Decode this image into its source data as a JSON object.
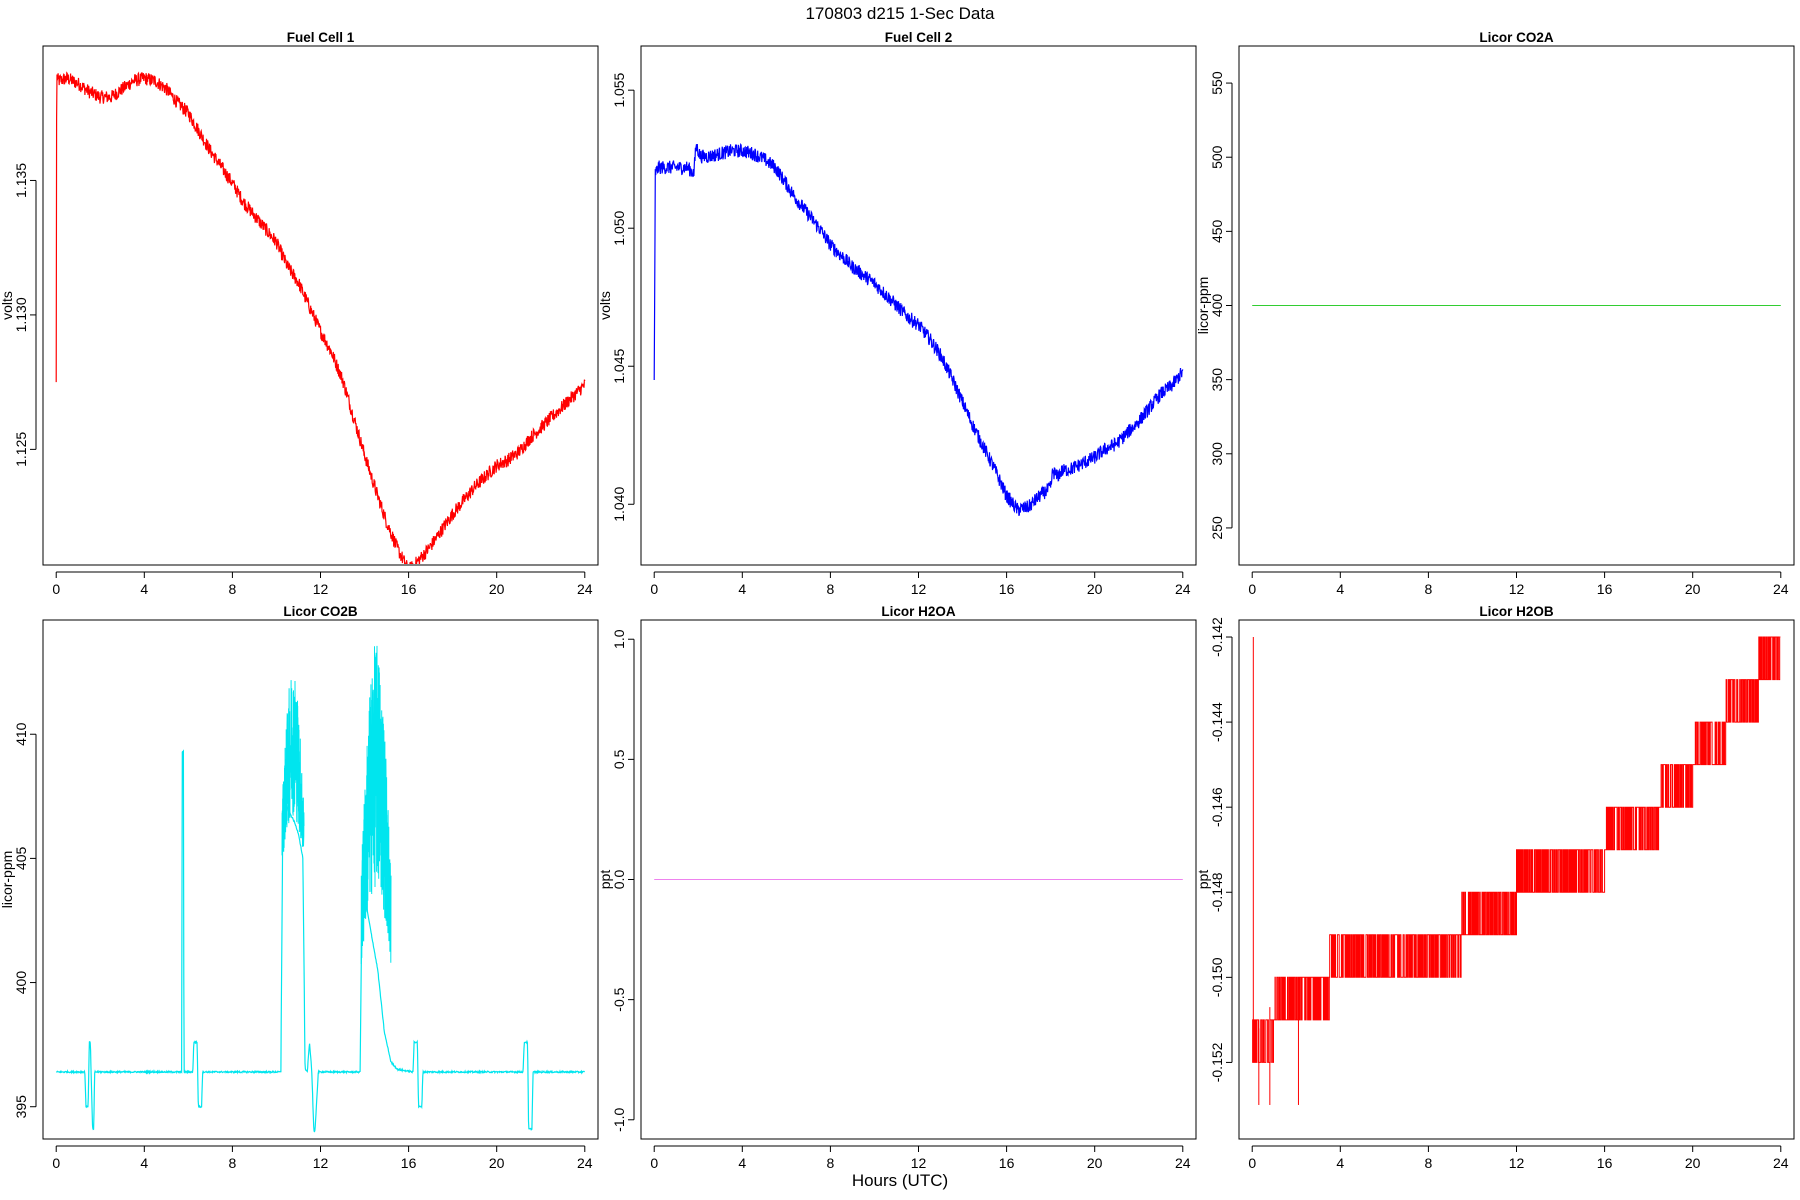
{
  "figure": {
    "title": "170803   d215   1-Sec Data",
    "xlabel": "Hours (UTC)"
  },
  "chart_data": [
    {
      "type": "line",
      "title": "Fuel Cell 1",
      "ylabel": "volts",
      "color": "#ff0000",
      "xlim": [
        -0.6,
        24.6
      ],
      "ylim": [
        1.1207,
        1.14
      ],
      "xticks": [
        0,
        4,
        8,
        12,
        16,
        20,
        24
      ],
      "yticks": [
        1.125,
        1.13,
        1.135
      ],
      "yticklabels": [
        "1.125",
        "1.130",
        "1.135"
      ],
      "noise": 0.00025,
      "x": [
        0,
        0.02,
        0.1,
        0.5,
        1,
        1.5,
        2,
        2.5,
        3,
        3.5,
        4,
        4.5,
        5,
        5.5,
        6,
        6.5,
        7,
        7.5,
        8,
        8.5,
        9,
        9.5,
        10,
        10.5,
        11,
        11.5,
        12,
        12.5,
        13,
        13.5,
        14,
        14.5,
        15,
        15.5,
        16,
        16.5,
        17,
        17.5,
        18,
        18.5,
        19,
        19.5,
        20,
        20.5,
        21,
        21.5,
        22,
        22.5,
        23,
        23.5,
        24
      ],
      "values": [
        1.1275,
        1.1389,
        1.1387,
        1.1388,
        1.1386,
        1.1383,
        1.1381,
        1.1381,
        1.1384,
        1.1387,
        1.1388,
        1.1387,
        1.1384,
        1.1379,
        1.1375,
        1.1368,
        1.1361,
        1.1355,
        1.1349,
        1.1342,
        1.1337,
        1.1332,
        1.1327,
        1.1318,
        1.1312,
        1.1303,
        1.1294,
        1.1286,
        1.1276,
        1.1262,
        1.1248,
        1.1235,
        1.1223,
        1.1213,
        1.1205,
        1.1209,
        1.1214,
        1.122,
        1.1226,
        1.1231,
        1.1236,
        1.124,
        1.1244,
        1.1246,
        1.1249,
        1.1254,
        1.1258,
        1.1262,
        1.1266,
        1.127,
        1.1274
      ]
    },
    {
      "type": "line",
      "title": "Fuel Cell 2",
      "ylabel": "volts",
      "color": "#0000ff",
      "xlim": [
        -0.6,
        24.6
      ],
      "ylim": [
        1.0378,
        1.0566
      ],
      "xticks": [
        0,
        4,
        8,
        12,
        16,
        20,
        24
      ],
      "yticks": [
        1.04,
        1.045,
        1.05,
        1.055
      ],
      "yticklabels": [
        "1.040",
        "1.045",
        "1.050",
        "1.055"
      ],
      "noise": 0.00025,
      "x": [
        0,
        0.05,
        0.2,
        0.5,
        1,
        1.5,
        1.8,
        1.9,
        2.1,
        2.5,
        3,
        3.5,
        4,
        4.5,
        5,
        5.5,
        6,
        6.5,
        7,
        7.5,
        8,
        8.5,
        9,
        9.5,
        10,
        10.5,
        11,
        11.5,
        12,
        12.5,
        13,
        13.5,
        14,
        14.5,
        15,
        15.5,
        16,
        16.5,
        17,
        17.5,
        18,
        18.1,
        18.3,
        18.5,
        19,
        19.5,
        20,
        20.5,
        21,
        21.5,
        22,
        22.5,
        23,
        23.5,
        24
      ],
      "values": [
        1.0445,
        1.052,
        1.0522,
        1.0522,
        1.0522,
        1.0522,
        1.052,
        1.053,
        1.0526,
        1.0526,
        1.0527,
        1.0528,
        1.0528,
        1.0527,
        1.0525,
        1.0522,
        1.0516,
        1.051,
        1.0505,
        1.05,
        1.0494,
        1.049,
        1.0486,
        1.0483,
        1.048,
        1.0476,
        1.0472,
        1.0468,
        1.0465,
        1.046,
        1.0454,
        1.0446,
        1.0437,
        1.0428,
        1.042,
        1.0412,
        1.0403,
        1.0398,
        1.0399,
        1.0403,
        1.0406,
        1.0412,
        1.041,
        1.0412,
        1.0413,
        1.0415,
        1.0417,
        1.042,
        1.0422,
        1.0426,
        1.043,
        1.0435,
        1.044,
        1.0443,
        1.0448
      ]
    },
    {
      "type": "line",
      "title": "Licor CO2A",
      "ylabel": "licor-ppm",
      "color": "#32cd32",
      "xlim": [
        -0.6,
        24.6
      ],
      "ylim": [
        225,
        575
      ],
      "xticks": [
        0,
        4,
        8,
        12,
        16,
        20,
        24
      ],
      "yticks": [
        250,
        300,
        350,
        400,
        450,
        500,
        550
      ],
      "yticklabels": [
        "250",
        "300",
        "350",
        "400",
        "450",
        "500",
        "550"
      ],
      "noise": 0,
      "x": [
        0,
        24
      ],
      "values": [
        400,
        400
      ]
    },
    {
      "type": "line",
      "title": "Licor CO2B",
      "ylabel": "licor-ppm",
      "color": "#00e5ee",
      "xlim": [
        -0.6,
        24.6
      ],
      "ylim": [
        393.7,
        414.6
      ],
      "xticks": [
        0,
        4,
        8,
        12,
        16,
        20,
        24
      ],
      "yticks": [
        395,
        400,
        405,
        410
      ],
      "yticklabels": [
        "395",
        "400",
        "405",
        "410"
      ],
      "noise": 0.03,
      "x": [
        0,
        1.3,
        1.35,
        1.45,
        1.5,
        1.55,
        1.65,
        1.7,
        1.75,
        2.0,
        5.7,
        5.72,
        5.78,
        5.8,
        6.2,
        6.25,
        6.4,
        6.45,
        6.6,
        6.65,
        10.2,
        10.3,
        10.5,
        10.8,
        11.0,
        11.2,
        11.3,
        11.4,
        11.5,
        11.6,
        11.7,
        11.75,
        11.9,
        11.95,
        13.8,
        13.9,
        14.0,
        14.3,
        14.6,
        14.9,
        15.2,
        15.5,
        16.2,
        16.25,
        16.4,
        16.45,
        16.6,
        16.65,
        21.2,
        21.25,
        21.4,
        21.45,
        21.6,
        21.65,
        24
      ],
      "values": [
        396.4,
        396.4,
        395.0,
        395.0,
        397.6,
        397.6,
        394.1,
        394.1,
        396.4,
        396.4,
        396.4,
        409.3,
        409.3,
        396.4,
        396.4,
        397.6,
        397.6,
        395.0,
        395.0,
        396.4,
        396.4,
        408.0,
        407.0,
        406.5,
        406.0,
        405.0,
        396.5,
        396.4,
        397.6,
        396.5,
        394.0,
        394.0,
        396.4,
        396.4,
        396.4,
        405.0,
        403.5,
        402.0,
        400.5,
        398.0,
        396.8,
        396.5,
        396.4,
        397.6,
        397.6,
        395.0,
        395.0,
        396.4,
        396.4,
        397.6,
        397.6,
        394.1,
        394.1,
        396.4,
        396.4
      ],
      "spikes": [
        {
          "from": 10.25,
          "to": 11.25,
          "min": 403.5,
          "max": 412.7
        },
        {
          "from": 13.85,
          "to": 15.2,
          "min": 398.5,
          "max": 413.7
        }
      ]
    },
    {
      "type": "line",
      "title": "Licor H2OA",
      "ylabel": "ppt",
      "color": "#ee82ee",
      "xlim": [
        -0.6,
        24.6
      ],
      "ylim": [
        -1.08,
        1.08
      ],
      "xticks": [
        0,
        4,
        8,
        12,
        16,
        20,
        24
      ],
      "yticks": [
        -1.0,
        -0.5,
        0.0,
        0.5,
        1.0
      ],
      "yticklabels": [
        "-1.0",
        "-0.5",
        "0.0",
        "0.5",
        "1.0"
      ],
      "noise": 0,
      "x": [
        0,
        24
      ],
      "values": [
        0,
        0
      ]
    },
    {
      "type": "step",
      "title": "Licor H2OB",
      "ylabel": "ppt",
      "color": "#ff0000",
      "xlim": [
        -0.6,
        24.6
      ],
      "ylim": [
        -0.1538,
        -0.1416
      ],
      "xticks": [
        0,
        4,
        8,
        12,
        16,
        20,
        24
      ],
      "yticks": [
        -0.152,
        -0.15,
        -0.148,
        -0.146,
        -0.144,
        -0.142
      ],
      "yticklabels": [
        "-0.152",
        "-0.150",
        "-0.148",
        "-0.146",
        "-0.144",
        "-0.142"
      ],
      "levels": [
        {
          "from": 0,
          "to": 1.0,
          "low": -0.152,
          "high": -0.151
        },
        {
          "from": 1.0,
          "to": 3.5,
          "low": -0.151,
          "high": -0.15
        },
        {
          "from": 3.5,
          "to": 6.5,
          "low": -0.15,
          "high": -0.149
        },
        {
          "from": 6.5,
          "to": 9.5,
          "low": -0.15,
          "high": -0.149
        },
        {
          "from": 9.5,
          "to": 12.0,
          "low": -0.149,
          "high": -0.148
        },
        {
          "from": 12.0,
          "to": 16.0,
          "low": -0.148,
          "high": -0.147
        },
        {
          "from": 16.0,
          "to": 18.5,
          "low": -0.147,
          "high": -0.146
        },
        {
          "from": 18.5,
          "to": 20.0,
          "low": -0.146,
          "high": -0.145
        },
        {
          "from": 20.0,
          "to": 21.5,
          "low": -0.145,
          "high": -0.144
        },
        {
          "from": 21.5,
          "to": 23.0,
          "low": -0.144,
          "high": -0.143
        },
        {
          "from": 23.0,
          "to": 24.0,
          "low": -0.143,
          "high": -0.142
        }
      ],
      "outliers": [
        {
          "x": 0.05,
          "y": -0.142
        },
        {
          "x": 0.3,
          "y": -0.153
        },
        {
          "x": 0.8,
          "y": -0.153
        },
        {
          "x": 2.1,
          "y": -0.153
        }
      ]
    }
  ]
}
